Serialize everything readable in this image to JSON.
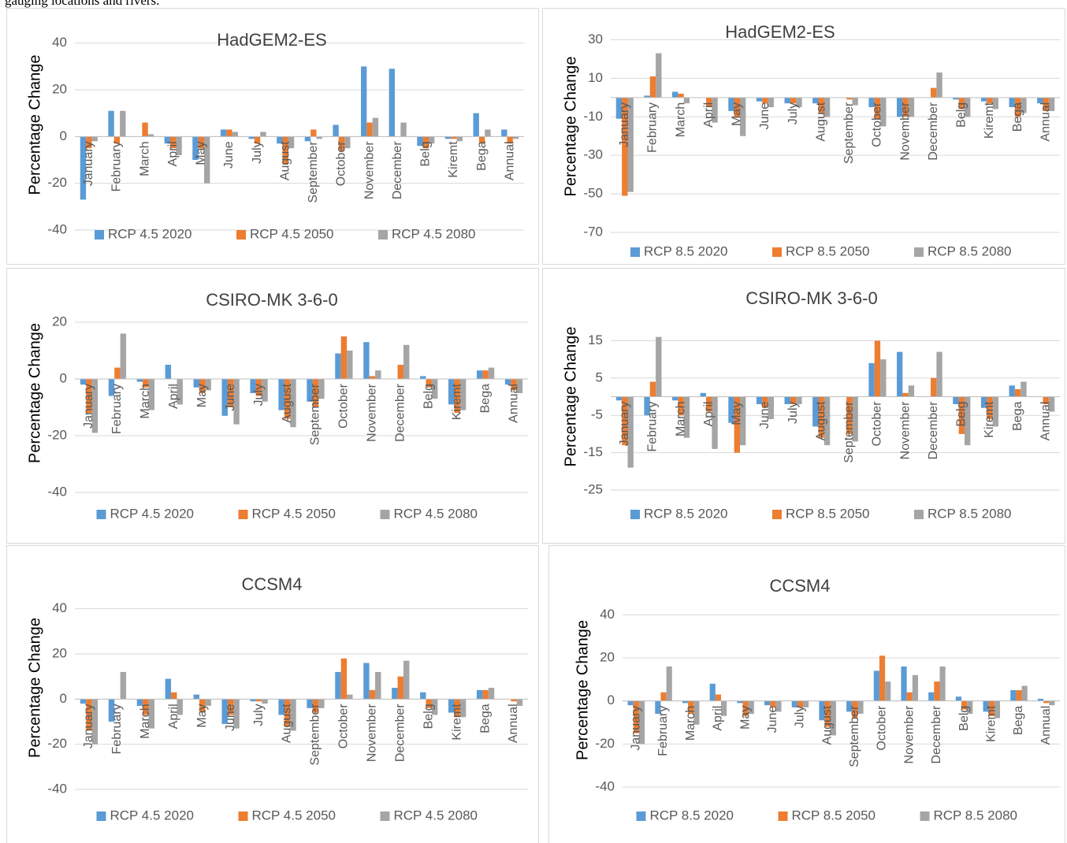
{
  "header_text": "gauging locations and rivers.",
  "chart_data": [
    {
      "type": "bar",
      "title": "HadGEM2-ES",
      "y_label": "Percentage Change",
      "categories": [
        "January",
        "February",
        "March",
        "April",
        "May",
        "June",
        "July",
        "August",
        "September",
        "October",
        "November",
        "December",
        "Belg",
        "Kiremt",
        "Bega",
        "Annual"
      ],
      "series": [
        {
          "name": "RCP 4.5 2020",
          "color": "#5b9bd5",
          "values": [
            -27,
            11,
            0,
            -3,
            -10,
            3,
            -1,
            -3,
            -2,
            5,
            30,
            29,
            -4,
            -1,
            10,
            3
          ]
        },
        {
          "name": "RCP 4.5 2050",
          "color": "#ed7d31",
          "values": [
            -5,
            -3,
            6,
            -5,
            -5,
            3,
            -3,
            -12,
            3,
            -6,
            6,
            0,
            -5,
            -1,
            -3,
            -3
          ]
        },
        {
          "name": "RCP 4.5 2080",
          "color": "#a5a5a5",
          "values": [
            -2,
            11,
            1,
            -8,
            -20,
            2,
            2,
            -5,
            -1,
            -5,
            8,
            6,
            -3,
            -2,
            3,
            -1
          ]
        }
      ],
      "ylim": [
        -40,
        50
      ],
      "yticks": [
        -40,
        -20,
        0,
        20,
        40
      ],
      "grid": true
    },
    {
      "type": "bar",
      "title": "HadGEM2-ES",
      "y_label": "Percentage Change",
      "categories": [
        "January",
        "February",
        "March",
        "April",
        "May",
        "June",
        "July",
        "August",
        "September",
        "October",
        "November",
        "December",
        "Belg",
        "Kiremt",
        "Bega",
        "Annual"
      ],
      "series": [
        {
          "name": "RCP 8.5 2020",
          "color": "#5b9bd5",
          "values": [
            -11,
            1,
            3,
            0,
            -7,
            -2,
            -3,
            -3,
            0,
            -5,
            -10,
            0,
            -1,
            -2,
            -5,
            -3
          ]
        },
        {
          "name": "RCP 8.5 2050",
          "color": "#ed7d31",
          "values": [
            -51,
            11,
            2,
            -5,
            -10,
            -3,
            -3,
            -8,
            -1,
            -11,
            -10,
            5,
            -6,
            -3,
            -10,
            -7
          ]
        },
        {
          "name": "RCP 8.5 2080",
          "color": "#a5a5a5",
          "values": [
            -49,
            23,
            -3,
            -13,
            -20,
            -5,
            -5,
            -10,
            -4,
            -15,
            -10,
            13,
            -10,
            -6,
            -8,
            -7
          ]
        }
      ],
      "ylim": [
        -70,
        40
      ],
      "yticks": [
        30,
        10,
        -10,
        -30,
        -50,
        -70
      ],
      "grid": true
    },
    {
      "type": "bar",
      "title": "CSIRO-MK 3-6-0",
      "y_label": "Percentage Change",
      "categories": [
        "January",
        "February",
        "March",
        "April",
        "May",
        "June",
        "July",
        "August",
        "September",
        "October",
        "November",
        "December",
        "Belg",
        "Kiremt",
        "Bega",
        "Annual"
      ],
      "series": [
        {
          "name": "RCP 4.5 2020",
          "color": "#5b9bd5",
          "values": [
            -2,
            -6,
            -1,
            5,
            -3,
            -13,
            -5,
            -11,
            -8,
            9,
            13,
            0,
            1,
            -9,
            3,
            -2
          ]
        },
        {
          "name": "RCP 4.5 2050",
          "color": "#ed7d31",
          "values": [
            -12,
            4,
            -3,
            0,
            -5,
            -10,
            -6,
            -14,
            -10,
            15,
            1,
            5,
            -3,
            -12,
            3,
            -4
          ]
        },
        {
          "name": "RCP 4.5 2080",
          "color": "#a5a5a5",
          "values": [
            -19,
            16,
            -11,
            -9,
            -4,
            -16,
            -8,
            -17,
            -7,
            10,
            3,
            12,
            -7,
            -11,
            4,
            -5
          ]
        }
      ],
      "ylim": [
        -40,
        30
      ],
      "yticks": [
        -40,
        -20,
        0,
        20
      ],
      "grid": true
    },
    {
      "type": "bar",
      "title": "CSIRO-MK 3-6-0",
      "y_label": "Percentage Change",
      "categories": [
        "January",
        "February",
        "March",
        "April",
        "May",
        "June",
        "July",
        "August",
        "September",
        "October",
        "November",
        "December",
        "Belg",
        "Kiremt",
        "Bega",
        "Annual"
      ],
      "series": [
        {
          "name": "RCP 8.5 2020",
          "color": "#5b9bd5",
          "values": [
            -1,
            -5,
            -1,
            1,
            -7,
            -2,
            -2,
            -8,
            0,
            9,
            12,
            0,
            -2,
            -3,
            3,
            0
          ]
        },
        {
          "name": "RCP 8.5 2050",
          "color": "#ed7d31",
          "values": [
            -13,
            4,
            -5,
            -4,
            -15,
            -3,
            -2,
            -11,
            -10,
            15,
            1,
            5,
            -10,
            -6,
            2,
            -2
          ]
        },
        {
          "name": "RCP 8.5 2080",
          "color": "#a5a5a5",
          "values": [
            -19,
            16,
            -11,
            -14,
            -13,
            -6,
            -2,
            -13,
            -12,
            10,
            3,
            12,
            -13,
            -8,
            4,
            -4
          ]
        }
      ],
      "ylim": [
        -25,
        25
      ],
      "yticks": [
        15,
        5,
        -5,
        -15,
        -25
      ],
      "grid": true
    },
    {
      "type": "bar",
      "title": "CCSM4",
      "y_label": "Percentage Change",
      "categories": [
        "January",
        "February",
        "March",
        "April",
        "May",
        "June",
        "July",
        "August",
        "September",
        "October",
        "November",
        "December",
        "Belg",
        "Kiremt",
        "Bega",
        "Annual"
      ],
      "series": [
        {
          "name": "RCP 4.5 2020",
          "color": "#5b9bd5",
          "values": [
            -2,
            -10,
            -3,
            9,
            2,
            -11,
            -1,
            -7,
            -4,
            12,
            16,
            5,
            3,
            -6,
            4,
            0
          ]
        },
        {
          "name": "RCP 4.5 2050",
          "color": "#ed7d31",
          "values": [
            -14,
            0,
            -7,
            3,
            -6,
            -7,
            -1,
            -12,
            -6,
            18,
            4,
            10,
            -4,
            -8,
            4,
            -1
          ]
        },
        {
          "name": "RCP 4.5 2080",
          "color": "#a5a5a5",
          "values": [
            -20,
            12,
            -13,
            -7,
            -3,
            -13,
            -2,
            -14,
            -4,
            2,
            12,
            17,
            -7,
            -8,
            5,
            -3
          ]
        }
      ],
      "ylim": [
        -40,
        50
      ],
      "yticks": [
        -40,
        -20,
        0,
        20,
        40
      ],
      "grid": true
    },
    {
      "type": "bar",
      "title": "CCSM4",
      "y_label": "Percentage Change",
      "categories": [
        "January",
        "February",
        "March",
        "April",
        "May",
        "June",
        "July",
        "August",
        "September",
        "October",
        "November",
        "December",
        "Belg",
        "Kiremt",
        "Bega",
        "Annual"
      ],
      "series": [
        {
          "name": "RCP 8.5 2020",
          "color": "#5b9bd5",
          "values": [
            -2,
            -6,
            -1,
            8,
            -1,
            -2,
            -3,
            -9,
            -5,
            14,
            16,
            4,
            2,
            -5,
            5,
            1
          ]
        },
        {
          "name": "RCP 8.5 2050",
          "color": "#ed7d31",
          "values": [
            -15,
            4,
            -6,
            3,
            -7,
            -3,
            -3,
            -12,
            -8,
            21,
            4,
            9,
            -4,
            -7,
            5,
            -1
          ]
        },
        {
          "name": "RCP 8.5 2080",
          "color": "#a5a5a5",
          "values": [
            -20,
            16,
            -11,
            -7,
            -6,
            -5,
            -3,
            -16,
            -6,
            9,
            12,
            16,
            -6,
            -8,
            7,
            -2
          ]
        }
      ],
      "ylim": [
        -40,
        50
      ],
      "yticks": [
        -40,
        -20,
        0,
        20,
        40
      ],
      "grid": true
    }
  ]
}
